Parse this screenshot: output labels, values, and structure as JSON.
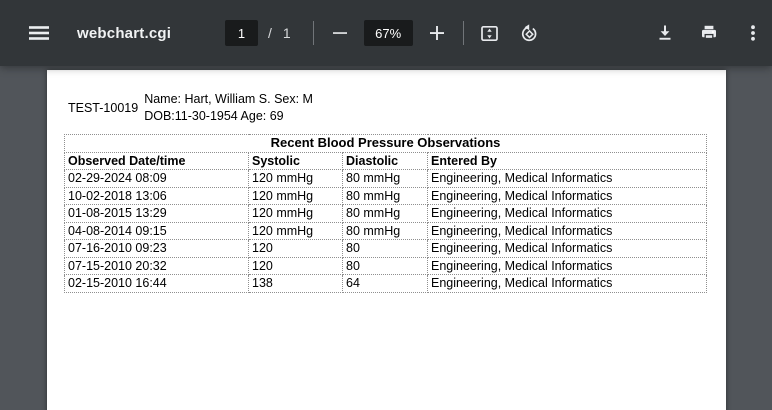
{
  "toolbar": {
    "title": "webchart.cgi",
    "page_current": "1",
    "page_slash": "/",
    "page_total": "1",
    "zoom_level": "67%",
    "icons": {
      "menu": "hamburger",
      "zoom_out": "minus",
      "zoom_in": "plus",
      "fit_page": "rect-with-vertical-arrows",
      "rotate": "diamond-counterclockwise-arrow",
      "download": "arrow-down-to-bar",
      "print": "printer",
      "more": "three-vertical-dots"
    }
  },
  "colors": {
    "toolbar_bg": "#323639",
    "control_bg": "#191b1c",
    "canvas_bg": "#51555a",
    "icon": "#e8eaed",
    "page_bg": "#ffffff",
    "table_border": "#8f8f8f",
    "text": "#000000"
  },
  "document": {
    "patient_id": "TEST-10019",
    "patient_line1": "Name: Hart, William S. Sex: M",
    "patient_line2": "DOB:11-30-1954 Age: 69",
    "table": {
      "title": "Recent Blood Pressure Observations",
      "headers": [
        "Observed Date/time",
        "Systolic",
        "Diastolic",
        "Entered By"
      ],
      "rows": [
        [
          "02-29-2024 08:09",
          "120 mmHg",
          "80 mmHg",
          "Engineering, Medical Informatics"
        ],
        [
          "10-02-2018 13:06",
          "120 mmHg",
          "80 mmHg",
          "Engineering, Medical Informatics"
        ],
        [
          "01-08-2015 13:29",
          "120 mmHg",
          "80 mmHg",
          "Engineering, Medical Informatics"
        ],
        [
          "04-08-2014 09:15",
          "120 mmHg",
          "80 mmHg",
          "Engineering, Medical Informatics"
        ],
        [
          "07-16-2010 09:23",
          "120",
          "80",
          "Engineering, Medical Informatics"
        ],
        [
          "07-15-2010 20:32",
          "120",
          "80",
          "Engineering, Medical Informatics"
        ],
        [
          "02-15-2010 16:44",
          "138",
          "64",
          "Engineering, Medical Informatics"
        ]
      ]
    }
  }
}
